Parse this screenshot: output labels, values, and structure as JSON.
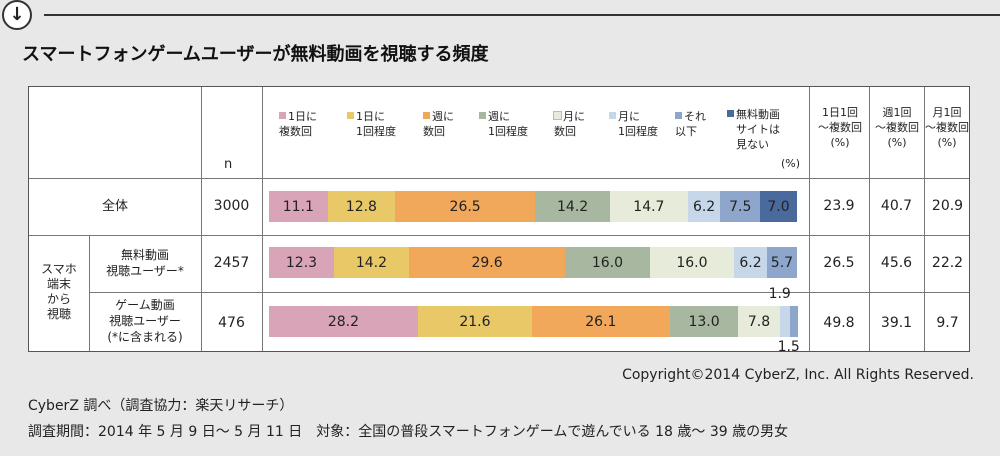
{
  "title": "スマートフォンゲームユーザーが無料動画を視聴する頻度",
  "header": {
    "n_label": "n",
    "unit": "(%)"
  },
  "legend": [
    {
      "label_l1": "1日に",
      "label_l2": "複数回",
      "color": "#d9a3b8"
    },
    {
      "label_l1": "1日に",
      "label_l2": "1回程度",
      "color": "#e8c867"
    },
    {
      "label_l1": "週に",
      "label_l2": "数回",
      "color": "#f1a85a"
    },
    {
      "label_l1": "週に",
      "label_l2": "1回程度",
      "color": "#a8b8a0"
    },
    {
      "label_l1": "月に",
      "label_l2": "数回",
      "color": "#e6ecd9"
    },
    {
      "label_l1": "月に",
      "label_l2": "1回程度",
      "color": "#c7d7ea"
    },
    {
      "label_l1": "それ",
      "label_l2": "以下",
      "color": "#8ea6cc"
    },
    {
      "label_l1": "無料動画",
      "label_l2": "サイトは",
      "label_l3": "見ない",
      "color": "#4a6a9e"
    }
  ],
  "rate_headers": [
    {
      "l1": "1日1回",
      "l2": "〜複数回",
      "l3": "(%)"
    },
    {
      "l1": "週1回",
      "l2": "〜複数回",
      "l3": "(%)"
    },
    {
      "l1": "月1回",
      "l2": "〜複数回",
      "l3": "(%)"
    }
  ],
  "side_label": "スマホ 端末 から 視聴",
  "side_lines": [
    "スマホ",
    "端末",
    "から",
    "視聴"
  ],
  "chart_data": {
    "type": "bar",
    "orientation": "horizontal-stacked",
    "unit": "(%)",
    "categories": [
      "全体",
      "無料動画視聴ユーザー*",
      "ゲーム動画視聴ユーザー(*に含まれる)"
    ],
    "n": [
      3000,
      2457,
      476
    ],
    "series": [
      {
        "name": "1日に複数回",
        "values": [
          11.1,
          12.3,
          28.2
        ]
      },
      {
        "name": "1日に1回程度",
        "values": [
          12.8,
          14.2,
          21.6
        ]
      },
      {
        "name": "週に数回",
        "values": [
          26.5,
          29.6,
          26.1
        ]
      },
      {
        "name": "週に1回程度",
        "values": [
          14.2,
          16.0,
          13.0
        ]
      },
      {
        "name": "月に数回",
        "values": [
          14.7,
          16.0,
          7.8
        ]
      },
      {
        "name": "月に1回程度",
        "values": [
          6.2,
          6.2,
          1.9
        ]
      },
      {
        "name": "それ以下",
        "values": [
          7.5,
          5.7,
          1.5
        ]
      },
      {
        "name": "無料動画サイトは見ない",
        "values": [
          7.0,
          null,
          null
        ]
      }
    ],
    "rates": [
      [
        "23.9",
        "40.7",
        "20.9"
      ],
      [
        "26.5",
        "45.6",
        "22.2"
      ],
      [
        "49.8",
        "39.1",
        "9.7"
      ]
    ]
  },
  "rows": [
    {
      "label": "全体",
      "n": "3000"
    },
    {
      "label_l1": "無料動画",
      "label_l2": "視聴ユーザー*",
      "n": "2457"
    },
    {
      "label_l1": "ゲーム動画",
      "label_l2": "視聴ユーザー",
      "label_l3": "(*に含まれる)",
      "n": "476"
    }
  ],
  "copyright": "Copyright©2014 CyberZ, Inc.  All Rights Reserved.",
  "note1": "CyberZ 調べ（調査協力：楽天リサーチ）",
  "note2": "調査期間：2014 年 5 月 9 日〜 5 月 11 日　対象：全国の普段スマートフォンゲームで遊んでいる 18 歳〜 39 歳の男女"
}
